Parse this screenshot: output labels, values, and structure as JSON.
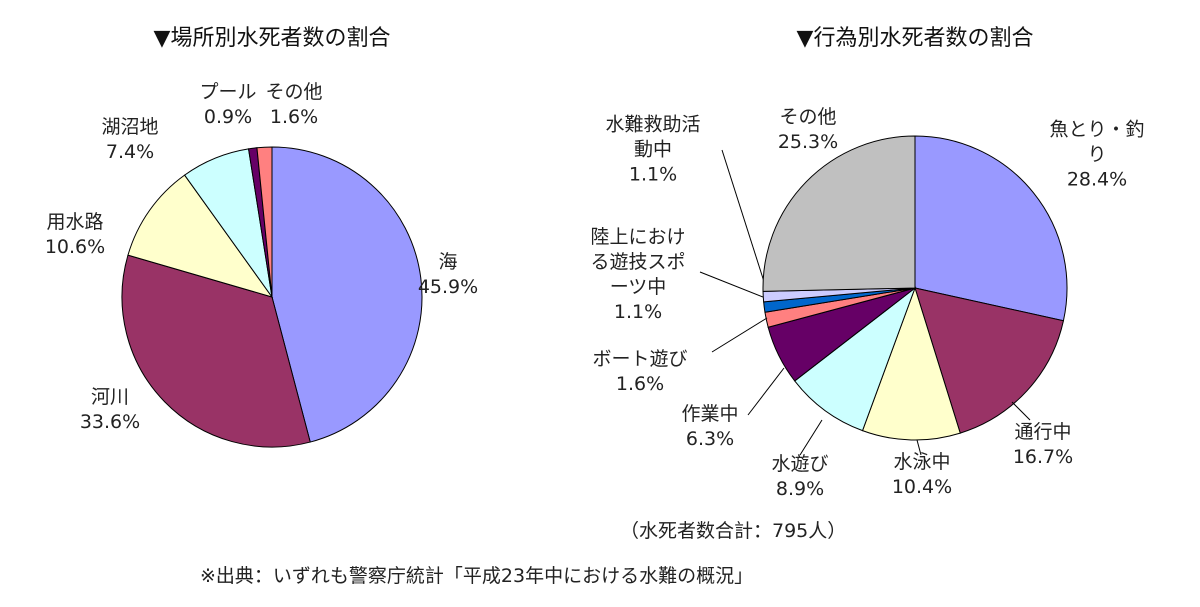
{
  "chart_data": [
    {
      "type": "pie",
      "title": "▼場所別水死者数の割合",
      "categories": [
        "海",
        "河川",
        "用水路",
        "湖沼地",
        "プール",
        "その他"
      ],
      "values": [
        45.9,
        33.6,
        10.6,
        7.4,
        0.9,
        1.6
      ],
      "value_labels": [
        "45.9%",
        "33.6%",
        "10.6%",
        "7.4%",
        "0.9%",
        "1.6%"
      ],
      "colors": [
        "#9999ff",
        "#993366",
        "#ffffcc",
        "#ccffff",
        "#660066",
        "#ff8080"
      ]
    },
    {
      "type": "pie",
      "title": "▼行為別水死者数の割合",
      "categories": [
        "魚とり・釣り",
        "通行中",
        "水泳中",
        "水遊び",
        "作業中",
        "ボート遊び",
        "陸上における遊技スポーツ中",
        "水難救助活動中",
        "その他"
      ],
      "values": [
        28.4,
        16.7,
        10.4,
        8.9,
        6.3,
        1.6,
        1.1,
        1.1,
        25.3
      ],
      "value_labels": [
        "28.4%",
        "16.7%",
        "10.4%",
        "8.9%",
        "6.3%",
        "1.6%",
        "1.1%",
        "1.1%",
        "25.3%"
      ],
      "colors": [
        "#9999ff",
        "#993366",
        "#ffffcc",
        "#ccffff",
        "#660066",
        "#ff8080",
        "#0066cc",
        "#ccccff",
        "#c0c0c0"
      ],
      "note": "（水死者数合計：795人）"
    }
  ],
  "footnote": "※出典：いずれも警察庁統計「平成23年中における水難の概況」"
}
